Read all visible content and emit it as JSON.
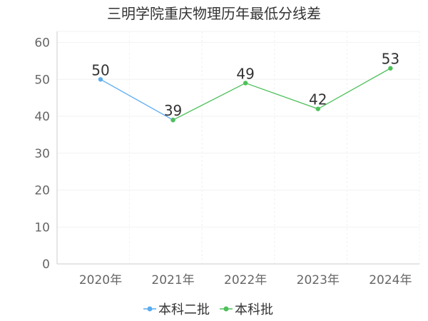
{
  "chart_data": {
    "type": "line",
    "title": "三明学院重庆物理历年最低分线差",
    "categories": [
      "2020年",
      "2021年",
      "2022年",
      "2023年",
      "2024年"
    ],
    "y_ticks": [
      0,
      10,
      20,
      30,
      40,
      50,
      60
    ],
    "ylim": [
      0,
      63
    ],
    "grid": true,
    "legend_position": "bottom-center",
    "series": [
      {
        "name": "本科二批",
        "color": "#5aacf1",
        "values": [
          50,
          39,
          null,
          null,
          null
        ]
      },
      {
        "name": "本科批",
        "color": "#4ec05a",
        "values": [
          null,
          39,
          49,
          42,
          53
        ]
      }
    ],
    "data_labels": [
      {
        "category": "2020年",
        "value": 50,
        "text": "50"
      },
      {
        "category": "2021年",
        "value": 39,
        "text": "39"
      },
      {
        "category": "2022年",
        "value": 49,
        "text": "49"
      },
      {
        "category": "2023年",
        "value": 42,
        "text": "42"
      },
      {
        "category": "2024年",
        "value": 53,
        "text": "53"
      }
    ]
  }
}
